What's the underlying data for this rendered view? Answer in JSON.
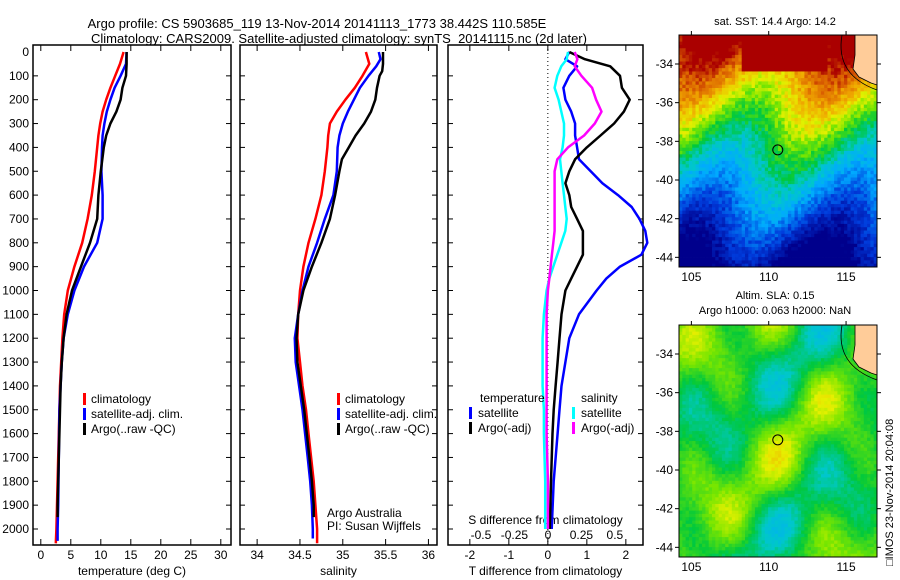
{
  "header": {
    "title_line1": "Argo profile: CS 5903685_119 13-Nov-2014 20141113_1773 38.442S 110.585E",
    "title_line2": "Climatology: CARS2009. Satellite-adjusted climatology: synTS_20141115.nc (2d later)"
  },
  "colors": {
    "climatology": "#ff0000",
    "satellite": "#0000ff",
    "argo": "#000000",
    "satellite_s": "#00ffff",
    "argo_s_adj": "#ff00ff",
    "land": "#ffcc99"
  },
  "chart_data": [
    {
      "type": "line",
      "title": "",
      "xlabel": "temperature (deg C)",
      "ylabel": "",
      "xlim": [
        -1.3,
        31.7
      ],
      "ylim": [
        2060,
        0
      ],
      "xticks": [
        "0",
        "5",
        "10",
        "15",
        "20",
        "25",
        "30"
      ],
      "xtick_values": [
        0,
        5,
        10,
        15,
        20,
        25,
        30
      ],
      "yticks": [
        "0",
        "100",
        "200",
        "300",
        "400",
        "500",
        "600",
        "700",
        "800",
        "900",
        "1000",
        "1100",
        "1200",
        "1300",
        "1400",
        "1500",
        "1600",
        "1700",
        "1800",
        "1900",
        "2000"
      ],
      "legend": [
        "climatology",
        "satellite-adj. clim.",
        "Argo(..raw -QC)"
      ],
      "legend_placement": "middle",
      "series": [
        {
          "name": "climatology",
          "color": "#ff0000",
          "depth": [
            0,
            50,
            100,
            150,
            200,
            250,
            300,
            350,
            400,
            500,
            600,
            700,
            800,
            900,
            1000,
            1100,
            1200,
            1300,
            1400,
            1500,
            1700,
            1900,
            2000,
            2060
          ],
          "values": [
            13.8,
            13.2,
            12.4,
            11.6,
            10.9,
            10.3,
            9.9,
            9.6,
            9.4,
            9.0,
            8.5,
            7.8,
            6.9,
            5.6,
            4.5,
            3.9,
            3.6,
            3.4,
            3.2,
            3.1,
            2.9,
            2.7,
            2.6,
            2.5
          ]
        },
        {
          "name": "satellite-adj. clim.",
          "color": "#0000ff",
          "depth": [
            0,
            50,
            100,
            150,
            200,
            250,
            300,
            350,
            400,
            500,
            600,
            700,
            800,
            900,
            1000,
            1100,
            1200,
            1300,
            1400,
            1500,
            1700,
            1900,
            2000,
            2050
          ],
          "values": [
            14.3,
            14.2,
            13.3,
            12.3,
            11.6,
            11.0,
            10.6,
            10.3,
            10.2,
            10.1,
            10.3,
            10.3,
            9.4,
            7.2,
            5.6,
            4.5,
            3.8,
            3.5,
            3.3,
            3.1,
            3.0,
            2.9,
            2.8,
            2.8
          ]
        },
        {
          "name": "Argo",
          "color": "#000000",
          "depth": [
            0,
            50,
            100,
            150,
            200,
            250,
            300,
            350,
            400,
            500,
            600,
            700,
            800,
            900,
            1000,
            1100,
            1200,
            1300,
            1400,
            1500,
            1700,
            1900,
            1950
          ],
          "values": [
            14.3,
            14.3,
            14.2,
            13.6,
            13.3,
            12.6,
            11.6,
            10.9,
            10.5,
            10.0,
            9.6,
            9.4,
            8.2,
            6.7,
            5.2,
            4.3,
            3.8,
            3.5,
            3.3,
            3.2,
            3.0,
            2.8,
            2.8
          ]
        }
      ]
    },
    {
      "type": "line",
      "title": "",
      "xlabel": "salinity",
      "ylabel": "",
      "xlim": [
        33.8,
        36.1
      ],
      "ylim": [
        2060,
        0
      ],
      "xticks": [
        "34",
        "34.5",
        "35",
        "35.5",
        "36"
      ],
      "xtick_values": [
        34,
        34.5,
        35,
        35.5,
        36
      ],
      "legend": [
        "climatology",
        "satellite-adj. clim.",
        "Argo(..raw -QC)"
      ],
      "legend_placement": "middle-right",
      "annotations": [
        "Argo Australia",
        "PI: Susan Wijffels"
      ],
      "series": [
        {
          "name": "climatology",
          "color": "#ff0000",
          "depth": [
            0,
            50,
            100,
            150,
            200,
            250,
            300,
            350,
            400,
            500,
            600,
            700,
            800,
            900,
            1000,
            1100,
            1200,
            1300,
            1400,
            1500,
            1600,
            1700,
            1800,
            1900,
            2000,
            2060
          ],
          "values": [
            35.27,
            35.31,
            35.23,
            35.14,
            35.03,
            34.93,
            34.85,
            34.83,
            34.82,
            34.79,
            34.75,
            34.68,
            34.6,
            34.54,
            34.5,
            34.48,
            34.47,
            34.5,
            34.53,
            34.57,
            34.6,
            34.63,
            34.66,
            34.68,
            34.7,
            34.7
          ]
        },
        {
          "name": "satellite-adj. clim.",
          "color": "#0000ff",
          "depth": [
            0,
            30,
            60,
            100,
            150,
            200,
            250,
            300,
            350,
            400,
            500,
            600,
            700,
            800,
            900,
            1000,
            1100,
            1200,
            1300,
            1400,
            1500,
            1600,
            1700,
            1800,
            1900,
            2000,
            2040
          ],
          "values": [
            35.42,
            35.44,
            35.39,
            35.3,
            35.2,
            35.13,
            35.06,
            35.0,
            34.96,
            34.94,
            34.93,
            34.89,
            34.79,
            34.7,
            34.6,
            34.53,
            34.48,
            34.44,
            34.45,
            34.49,
            34.53,
            34.56,
            34.59,
            34.62,
            34.64,
            34.65,
            34.65
          ]
        },
        {
          "name": "Argo",
          "color": "#000000",
          "depth": [
            0,
            50,
            80,
            100,
            150,
            200,
            250,
            300,
            350,
            400,
            450,
            500,
            600,
            700,
            800,
            900,
            1000,
            1100,
            1200,
            1300,
            1400,
            1500,
            1600,
            1700,
            1800,
            1900,
            1950
          ],
          "values": [
            35.47,
            35.47,
            35.46,
            35.43,
            35.4,
            35.38,
            35.33,
            35.25,
            35.15,
            35.07,
            34.99,
            34.96,
            34.91,
            34.85,
            34.75,
            34.64,
            34.54,
            34.48,
            34.46,
            34.47,
            34.51,
            34.55,
            34.58,
            34.61,
            34.64,
            34.66,
            34.66
          ]
        }
      ]
    },
    {
      "type": "line",
      "title": "",
      "xlabel": "T difference from climatology",
      "xlabel2": "S difference from climatology",
      "ylabel": "",
      "xlim": [
        -2.56,
        2.44
      ],
      "xlim_s": [
        -0.746,
        0.71
      ],
      "ylim": [
        2060,
        0
      ],
      "xticks": [
        "-2",
        "-1",
        "0",
        "1",
        "2"
      ],
      "xtick_values": [
        -2,
        -1,
        0,
        1,
        2
      ],
      "xticks_s": [
        "-0.5",
        "-0.25",
        "0",
        "0.25",
        "0.5"
      ],
      "xtick_values_s": [
        -0.5,
        -0.25,
        0,
        0.25,
        0.5
      ],
      "legend_headers": [
        "temperature",
        "salinity"
      ],
      "legend": [
        "satellite",
        "Argo(-adj)",
        "satellite",
        "Argo(-adj)"
      ],
      "legend_placement": "bottom",
      "series": [
        {
          "name": "T satellite",
          "axis": "T",
          "color": "#0000ff",
          "depth": [
            0,
            30,
            60,
            100,
            150,
            200,
            250,
            300,
            350,
            400,
            450,
            500,
            550,
            600,
            650,
            700,
            750,
            800,
            850,
            900,
            950,
            1000,
            1100,
            1200,
            1300,
            1400,
            1500,
            1600,
            1800,
            2000
          ],
          "values": [
            0.55,
            0.45,
            0.75,
            0.55,
            0.4,
            0.45,
            0.6,
            0.7,
            0.7,
            0.75,
            0.8,
            1.1,
            1.4,
            1.8,
            2.15,
            2.35,
            2.5,
            2.55,
            2.4,
            1.85,
            1.5,
            1.25,
            0.8,
            0.55,
            0.45,
            0.35,
            0.3,
            0.25,
            0.15,
            0.1
          ]
        },
        {
          "name": "T Argo",
          "axis": "T",
          "color": "#000000",
          "depth": [
            0,
            30,
            60,
            100,
            150,
            200,
            250,
            300,
            350,
            400,
            450,
            500,
            550,
            600,
            650,
            700,
            750,
            800,
            850,
            900,
            950,
            1000,
            1100,
            1200,
            1300,
            1400,
            1500,
            1600,
            1800,
            2000
          ],
          "values": [
            0.55,
            0.95,
            1.6,
            1.85,
            1.9,
            2.1,
            1.95,
            1.7,
            1.35,
            1.0,
            0.7,
            0.55,
            0.45,
            0.55,
            0.6,
            0.75,
            0.9,
            0.9,
            0.9,
            0.75,
            0.6,
            0.45,
            0.35,
            0.3,
            0.25,
            0.2,
            0.15,
            0.12,
            0.08,
            0.05
          ]
        },
        {
          "name": "S satellite",
          "axis": "S",
          "color": "#00ffff",
          "depth": [
            0,
            30,
            60,
            100,
            150,
            200,
            250,
            300,
            350,
            400,
            450,
            500,
            550,
            600,
            650,
            700,
            750,
            800,
            850,
            900,
            950,
            1000,
            1100,
            1200,
            1300,
            1400,
            1500,
            1600,
            1800,
            2000
          ],
          "values": [
            0.15,
            0.14,
            0.1,
            0.07,
            0.05,
            0.08,
            0.1,
            0.12,
            0.12,
            0.11,
            0.09,
            0.1,
            0.11,
            0.12,
            0.13,
            0.14,
            0.13,
            0.1,
            0.07,
            0.04,
            0.01,
            -0.01,
            -0.03,
            -0.04,
            -0.04,
            -0.04,
            -0.03,
            -0.03,
            -0.02,
            -0.02
          ]
        },
        {
          "name": "S Argo",
          "axis": "S",
          "color": "#ff00ff",
          "depth": [
            0,
            30,
            60,
            100,
            150,
            200,
            250,
            300,
            350,
            400,
            450,
            500,
            550,
            600,
            650,
            700,
            750,
            800,
            850,
            900,
            950,
            1000,
            1100,
            1200,
            1300,
            1400,
            1500,
            1600,
            1800,
            2000
          ],
          "values": [
            0.2,
            0.22,
            0.2,
            0.25,
            0.33,
            0.36,
            0.4,
            0.35,
            0.27,
            0.15,
            0.07,
            0.05,
            0.05,
            0.05,
            0.05,
            0.05,
            0.05,
            0.04,
            0.03,
            0.02,
            0.01,
            0.0,
            -0.01,
            -0.01,
            -0.01,
            -0.01,
            -0.01,
            -0.01,
            0.0,
            0.0
          ]
        }
      ]
    },
    {
      "type": "heatmap",
      "title": "sat. SST: 14.4 Argo: 14.2",
      "xticks": [
        "105",
        "110",
        "115"
      ],
      "xtick_values": [
        105,
        110,
        115
      ],
      "yticks": [
        "-34",
        "-36",
        "-38",
        "-40",
        "-42",
        "-44"
      ],
      "ytick_values": [
        -34,
        -36,
        -38,
        -40,
        -42,
        -44
      ],
      "xlim": [
        104.2,
        117.0
      ],
      "ylim": [
        -44.5,
        -32.5
      ],
      "marker": {
        "lon": 110.585,
        "lat": -38.442
      }
    },
    {
      "type": "heatmap",
      "title": "Altim. SLA: 0.15",
      "subtitle": "Argo h1000: 0.063 h2000: NaN",
      "xticks": [
        "105",
        "110",
        "115"
      ],
      "xtick_values": [
        105,
        110,
        115
      ],
      "yticks": [
        "-34",
        "-36",
        "-38",
        "-40",
        "-42",
        "-44"
      ],
      "ytick_values": [
        -34,
        -36,
        -38,
        -40,
        -42,
        -44
      ],
      "xlim": [
        104.2,
        117.0
      ],
      "ylim": [
        -44.5,
        -32.5
      ],
      "marker": {
        "lon": 110.585,
        "lat": -38.442
      }
    }
  ],
  "footer": {
    "stamp": "□IMOS 23-Nov-2014 20:04:08"
  }
}
